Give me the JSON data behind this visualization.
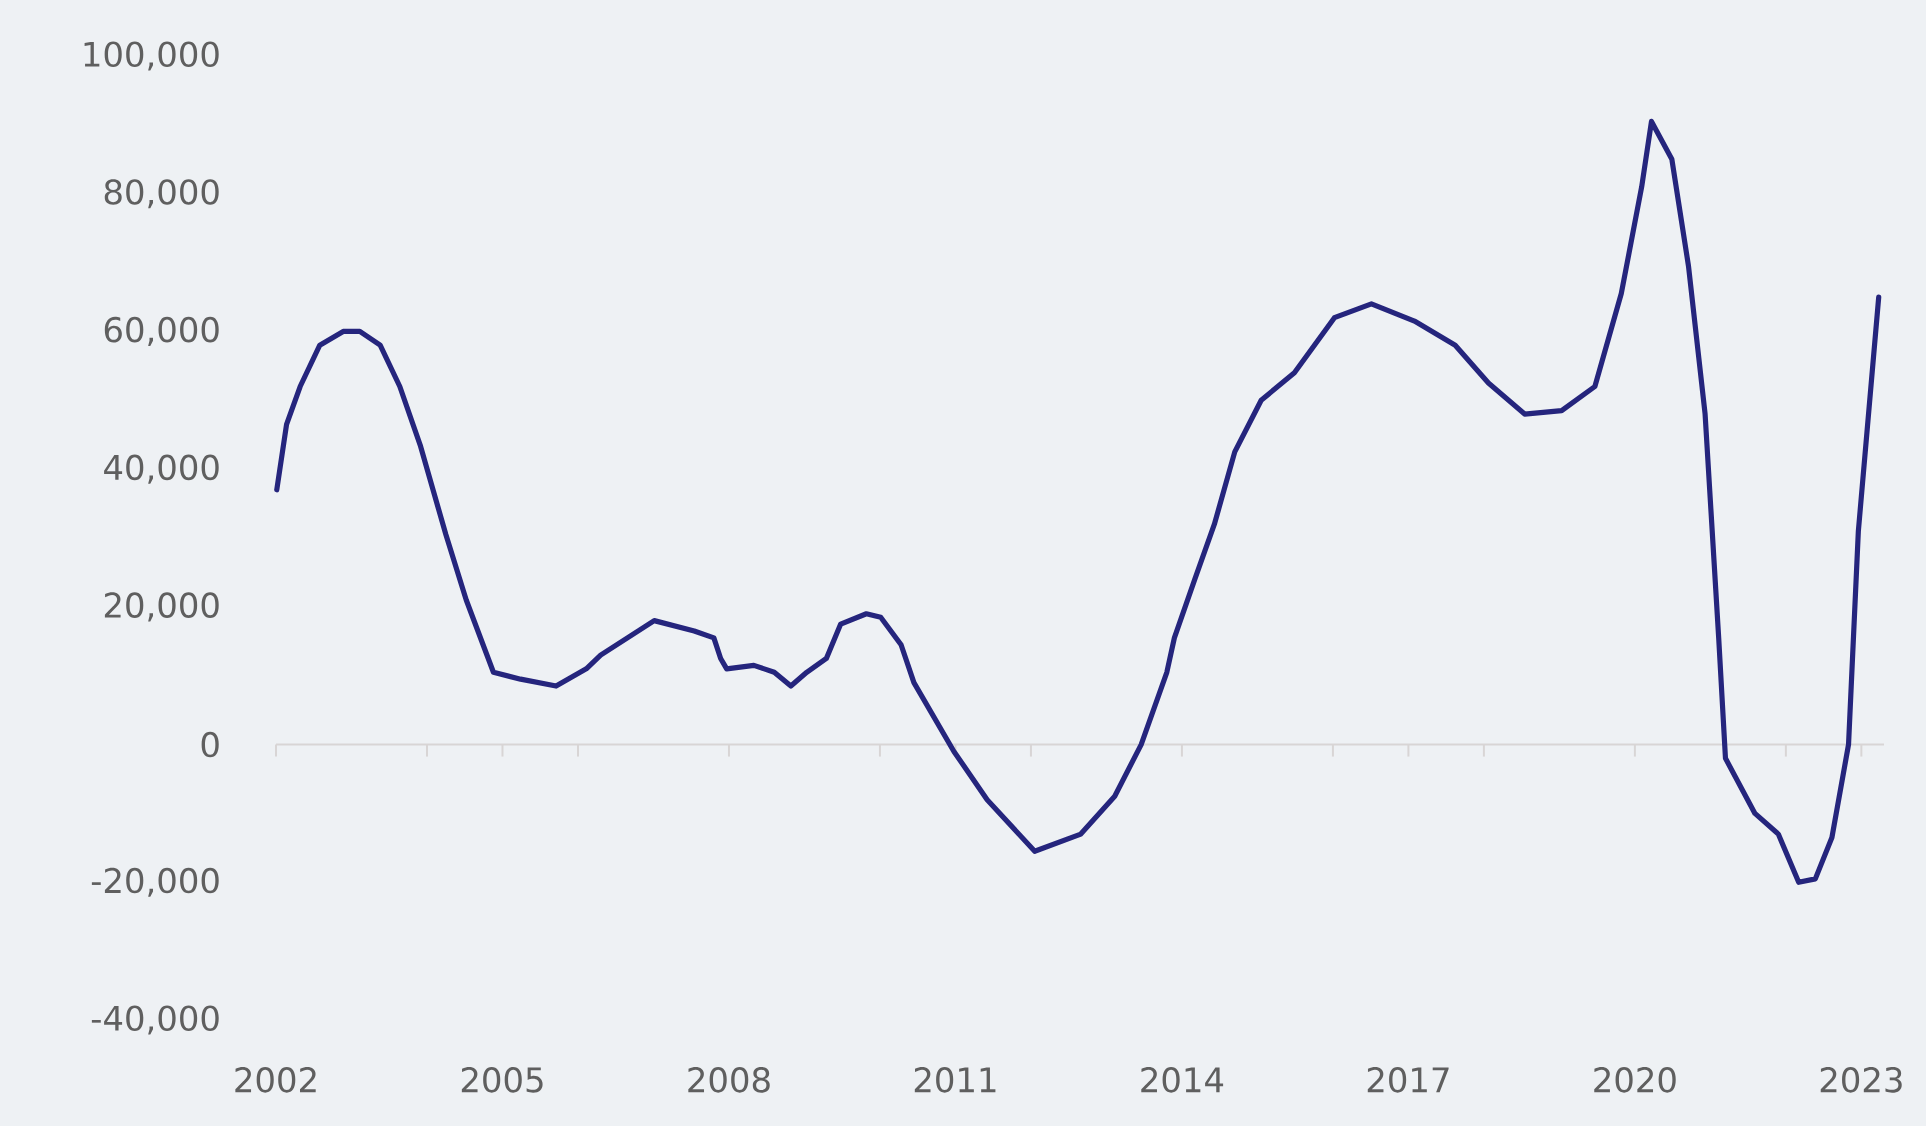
{
  "chart_data": {
    "type": "line",
    "color": "#25257d",
    "x": [
      2002.01,
      2002.14,
      2002.32,
      2002.58,
      2002.89,
      2003.11,
      2003.38,
      2003.64,
      2003.91,
      2004.25,
      2004.52,
      2004.88,
      2005.24,
      2005.71,
      2006.11,
      2006.3,
      2007.01,
      2007.54,
      2007.8,
      2007.89,
      2007.97,
      2008.33,
      2008.6,
      2008.82,
      2009.03,
      2009.29,
      2009.48,
      2009.82,
      2010.01,
      2010.28,
      2010.45,
      2010.98,
      2011.42,
      2012.05,
      2012.66,
      2013.11,
      2013.46,
      2013.8,
      2013.9,
      2014.17,
      2014.43,
      2014.7,
      2015.05,
      2015.49,
      2016.02,
      2016.51,
      2017.08,
      2017.62,
      2018.06,
      2018.54,
      2019.03,
      2019.47,
      2019.82,
      2020.09,
      2020.22,
      2020.49,
      2020.71,
      2020.93,
      2021.11,
      2021.2,
      2021.59,
      2021.9,
      2022.17,
      2022.39,
      2022.61,
      2022.83,
      2022.96,
      2023.23
    ],
    "values": [
      37000,
      46500,
      52000,
      58000,
      60000,
      60000,
      58000,
      52000,
      43500,
      30500,
      21000,
      10500,
      9500,
      8500,
      11000,
      13000,
      18000,
      16500,
      15500,
      12500,
      11000,
      11500,
      10500,
      8500,
      10500,
      12500,
      17500,
      19000,
      18500,
      14500,
      9000,
      -1000,
      -8000,
      -15500,
      -13000,
      -7500,
      0,
      10500,
      15500,
      24000,
      32000,
      42500,
      50000,
      54000,
      62000,
      64000,
      61500,
      58000,
      52500,
      48000,
      48500,
      52000,
      65500,
      81000,
      90500,
      85000,
      69500,
      48000,
      15500,
      -2000,
      -10000,
      -13000,
      -20000,
      -19500,
      -13500,
      0,
      31000,
      65000
    ],
    "xlim": [
      2002,
      2023.3
    ],
    "xticks": [
      {
        "value": 2002,
        "label": "2002"
      },
      {
        "value": 2004,
        "label": null
      },
      {
        "value": 2005,
        "label": "2005"
      },
      {
        "value": 2006,
        "label": null
      },
      {
        "value": 2008,
        "label": "2008"
      },
      {
        "value": 2010,
        "label": null
      },
      {
        "value": 2011,
        "label": "2011"
      },
      {
        "value": 2012,
        "label": null
      },
      {
        "value": 2014,
        "label": "2014"
      },
      {
        "value": 2016,
        "label": null
      },
      {
        "value": 2017,
        "label": "2017"
      },
      {
        "value": 2018,
        "label": null
      },
      {
        "value": 2020,
        "label": "2020"
      },
      {
        "value": 2022,
        "label": null
      },
      {
        "value": 2023,
        "label": "2023"
      }
    ],
    "ylim": [
      -40000,
      100000
    ],
    "yticks": [
      {
        "value": -40000,
        "label": "-40,000"
      },
      {
        "value": -20000,
        "label": "-20,000"
      },
      {
        "value": 0,
        "label": "0"
      },
      {
        "value": 20000,
        "label": "20,000"
      },
      {
        "value": 40000,
        "label": "40,000"
      },
      {
        "value": 60000,
        "label": "60,000"
      },
      {
        "value": 80000,
        "label": "80,000"
      },
      {
        "value": 100000,
        "label": "100,000"
      }
    ],
    "ref_lines": [
      {
        "axis": "y",
        "value": 0,
        "color": "#d8d5d5"
      }
    ],
    "marker": "none",
    "line_style": "solid"
  }
}
